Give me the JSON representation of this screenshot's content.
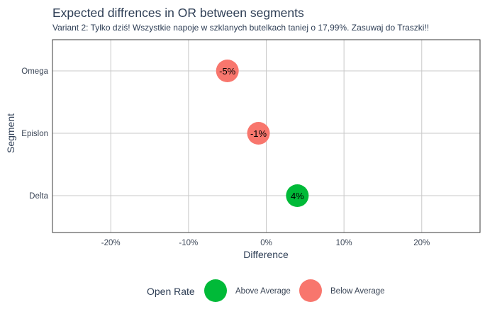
{
  "chart_data": {
    "type": "scatter",
    "title": "Expected diffrences in OR between segments",
    "subtitle": "Variant 2: Tylko dziś! Wszystkie napoje w szklanych butelkach taniej o 17,99%. Zasuwaj do Traszki!!",
    "xlabel": "Difference",
    "ylabel": "Segment",
    "xlim": [
      -27.5,
      27.5
    ],
    "x_ticks": [
      -20,
      -10,
      0,
      10,
      20
    ],
    "x_tick_labels": [
      "-20%",
      "-10%",
      "0%",
      "10%",
      "20%"
    ],
    "categories": [
      "Omega",
      "Epislon",
      "Delta"
    ],
    "grid": true,
    "legend_position": "bottom",
    "legend": {
      "title": "Open Rate",
      "entries": [
        {
          "label": "Above Average",
          "color": "#00BA38"
        },
        {
          "label": "Below Average",
          "color": "#F8766D"
        }
      ]
    },
    "points": [
      {
        "segment": "Omega",
        "value": -5,
        "label": "-5%",
        "group": "Below Average"
      },
      {
        "segment": "Epislon",
        "value": -1,
        "label": "-1%",
        "group": "Below Average"
      },
      {
        "segment": "Delta",
        "value": 4,
        "label": "4%",
        "group": "Above Average"
      }
    ]
  },
  "colors": {
    "above": "#00BA38",
    "below": "#F8766D",
    "title_text": "#2E3E55",
    "axis_text": "#3A4556",
    "grid": "#C8C8C8",
    "frame": "#3A3A3A"
  }
}
